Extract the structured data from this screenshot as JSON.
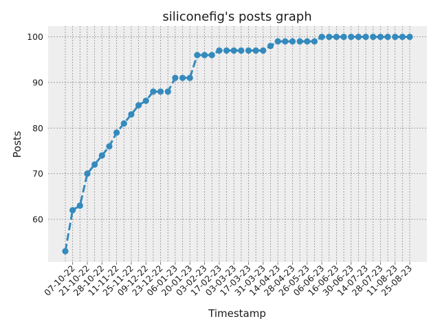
{
  "chart_data": {
    "type": "line",
    "title": "siliconefig's posts graph",
    "xlabel": "Timestamp",
    "ylabel": "Posts",
    "ylim": [
      50.65,
      102.35
    ],
    "yticks": [
      60,
      70,
      80,
      90,
      100
    ],
    "grid": true,
    "x_tick_labels": [
      "07-10-22",
      "21-10-22",
      "28-10-22",
      "11-11-22",
      "25-11-22",
      "09-12-22",
      "23-12-22",
      "06-01-23",
      "20-01-23",
      "03-02-23",
      "17-02-23",
      "03-03-23",
      "17-03-23",
      "31-03-23",
      "14-04-23",
      "28-04-23",
      "26-05-23",
      "06-06-23",
      "16-06-23",
      "30-06-23",
      "14-07-23",
      "28-07-23",
      "11-08-23",
      "25-08-23"
    ],
    "series": [
      {
        "color": "#348abd",
        "values": [
          53,
          62,
          63,
          70,
          72,
          74,
          76,
          79,
          81,
          83,
          85,
          86,
          88,
          88,
          88,
          91,
          91,
          91,
          96,
          96,
          96,
          97,
          97,
          97,
          97,
          97,
          97,
          97,
          98,
          99,
          99,
          99,
          99,
          99,
          99,
          100,
          100,
          100,
          100,
          100,
          100,
          100,
          100,
          100,
          100,
          100,
          100,
          100
        ]
      }
    ]
  }
}
